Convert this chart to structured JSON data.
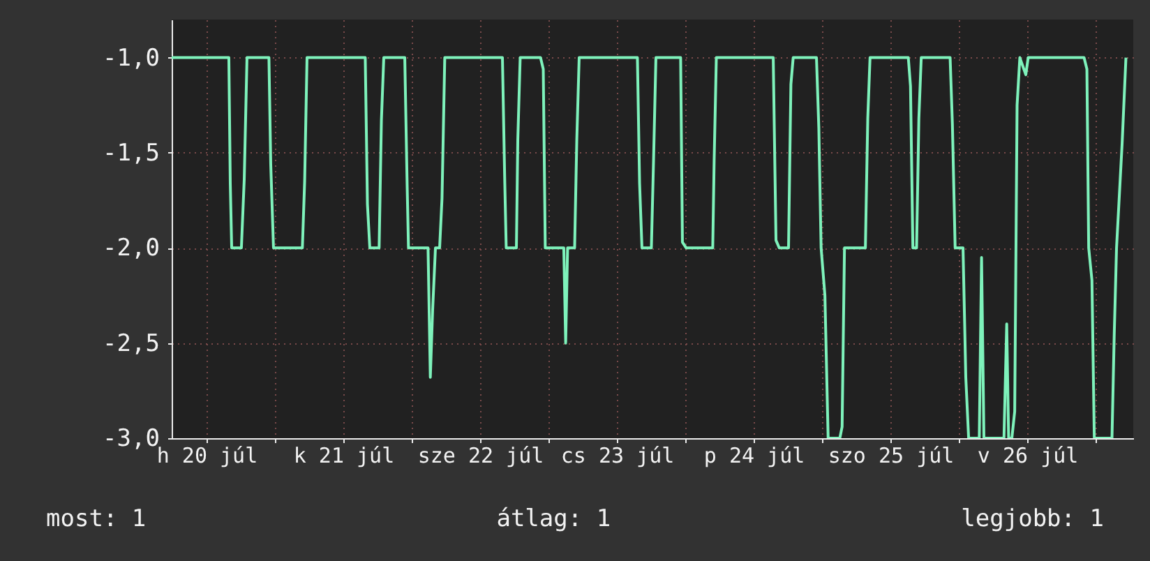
{
  "chart_data": {
    "type": "line",
    "grid": true,
    "color": "#7ef2bb",
    "x": [
      "--07-20T05:53",
      "--07-20T15:55",
      "--07-20T16:10",
      "--07-20T16:25",
      "--07-20T18:07",
      "--07-20T18:37",
      "--07-20T19:06",
      "--07-20T22:57",
      "--07-20T23:16",
      "--07-20T23:45",
      "--07-21T04:49",
      "--07-21T05:13",
      "--07-21T05:38",
      "--07-21T15:51",
      "--07-21T16:14",
      "--07-21T16:39",
      "--07-21T18:17",
      "--07-21T18:41",
      "--07-21T19:06",
      "--07-21T22:47",
      "--07-21T23:12",
      "--07-21T23:26",
      "--07-22T02:52",
      "--07-22T03:16",
      "--07-22T03:40",
      "--07-22T04:10",
      "--07-22T04:54",
      "--07-22T05:19",
      "--07-22T05:48",
      "--07-22T15:55",
      "--07-22T16:20",
      "--07-22T16:35",
      "--07-22T18:22",
      "--07-22T18:37",
      "--07-22T19:02",
      "--07-22T22:36",
      "--07-22T23:05",
      "--07-22T23:26",
      "--07-23T02:41",
      "--07-23T03:01",
      "--07-23T03:21",
      "--07-23T04:35",
      "--07-23T04:58",
      "--07-23T05:23",
      "--07-23T15:36",
      "--07-23T15:59",
      "--07-23T16:24",
      "--07-23T18:03",
      "--07-23T18:26",
      "--07-23T18:51",
      "--07-23T23:11",
      "--07-23T23:30",
      "--07-24T00:10",
      "--07-24T04:49",
      "--07-24T05:04",
      "--07-24T05:27",
      "--07-24T15:26",
      "--07-24T15:55",
      "--07-24T16:29",
      "--07-24T18:07",
      "--07-24T18:32",
      "--07-24T18:56",
      "--07-24T23:01",
      "--07-24T23:26",
      "--07-24T23:50",
      "--07-25T00:30",
      "--07-25T01:04",
      "--07-25T03:07",
      "--07-25T03:31",
      "--07-25T03:56",
      "--07-25T07:36",
      "--07-25T08:01",
      "--07-25T08:25",
      "--07-25T15:08",
      "--07-25T15:31",
      "--07-25T15:56",
      "--07-25T16:35",
      "--07-25T16:59",
      "--07-25T17:24",
      "--07-25T22:28",
      "--07-25T22:52",
      "--07-25T23:21",
      "--07-26T00:44",
      "--07-26T01:13",
      "--07-26T01:43",
      "--07-26T03:35",
      "--07-26T03:59",
      "--07-26T04:24",
      "--07-26T07:55",
      "--07-26T08:24",
      "--07-26T08:44",
      "--07-26T09:18",
      "--07-26T09:48",
      "--07-26T10:13",
      "--07-26T10:42",
      "--07-26T11:45",
      "--07-26T12:10",
      "--07-26T21:58",
      "--07-26T22:28",
      "--07-26T22:47",
      "--07-26T23:21",
      "--07-26T23:46",
      "--07-27T02:52",
      "--07-27T03:16",
      "--07-27T03:40",
      "--07-27T04:39",
      "--07-27T05:19"
    ],
    "values": [
      -1,
      -1,
      -1.66,
      -2,
      -2,
      -1.64,
      -1,
      -1,
      -1.56,
      -2,
      -2,
      -1.65,
      -1,
      -1,
      -1.77,
      -2,
      -2,
      -1.33,
      -1,
      -1,
      -1.67,
      -2,
      -2,
      -2.68,
      -2.33,
      -2,
      -2,
      -1.74,
      -1,
      -1,
      -1.66,
      -2,
      -2,
      -1.43,
      -1,
      -1,
      -1.06,
      -2,
      -2,
      -2.5,
      -2,
      -2,
      -1.43,
      -1,
      -1,
      -1.66,
      -2,
      -2,
      -1.54,
      -1,
      -1,
      -1.97,
      -2,
      -2,
      -1.54,
      -1,
      -1,
      -1.96,
      -2,
      -2,
      -1.14,
      -1,
      -1,
      -1.37,
      -2,
      -2.25,
      -3,
      -3,
      -2.94,
      -2,
      -2,
      -1.32,
      -1,
      -1,
      -1.15,
      -2,
      -2,
      -1.32,
      -1,
      -1,
      -1.35,
      -2,
      -2,
      -2.68,
      -3,
      -3,
      -2.05,
      -3,
      -3,
      -2.4,
      -3,
      -3,
      -2.86,
      -1.25,
      -1,
      -1.09,
      -1,
      -1,
      -1.06,
      -2,
      -2.17,
      -3,
      -3,
      -2.45,
      -2,
      -1.45,
      -1
    ],
    "xlim": [
      "--07-20T05:53",
      "--07-27T06:36"
    ],
    "xticks": [
      {
        "value": "--07-20T12:00",
        "label": "h 20 júl"
      },
      {
        "value": "--07-21T00:00",
        "label": null
      },
      {
        "value": "--07-21T12:00",
        "label": "k 21 júl"
      },
      {
        "value": "--07-22T00:00",
        "label": null
      },
      {
        "value": "--07-22T12:00",
        "label": "sze 22 júl"
      },
      {
        "value": "--07-23T00:00",
        "label": null
      },
      {
        "value": "--07-23T12:00",
        "label": "cs 23 júl"
      },
      {
        "value": "--07-24T00:00",
        "label": null
      },
      {
        "value": "--07-24T12:00",
        "label": "p 24 júl"
      },
      {
        "value": "--07-25T00:00",
        "label": null
      },
      {
        "value": "--07-25T12:00",
        "label": "szo 25 júl"
      },
      {
        "value": "--07-26T00:00",
        "label": null
      },
      {
        "value": "--07-26T12:00",
        "label": "v 26 júl"
      },
      {
        "value": "--07-27T00:00",
        "label": null
      }
    ],
    "ylim": [
      -3.0,
      -0.8
    ],
    "yticks": [
      {
        "value": -3,
        "label": "-3,0"
      },
      {
        "value": -2.5,
        "label": "-2,5"
      },
      {
        "value": -2,
        "label": "-2,0"
      },
      {
        "value": -1.5,
        "label": "-1,5"
      },
      {
        "value": -1,
        "label": "-1,0"
      }
    ],
    "annotations": [
      "most: 1",
      "átlag: 1",
      "legjobb: 1"
    ]
  }
}
